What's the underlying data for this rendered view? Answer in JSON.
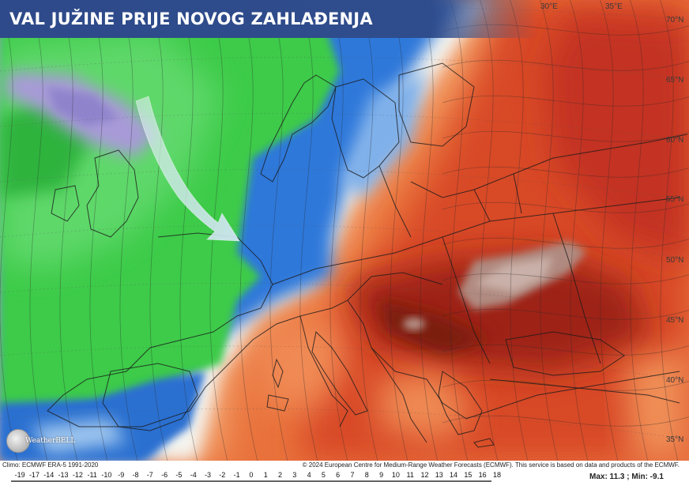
{
  "title": "VAL JUŽINE PRIJE NOVOG ZAHLAĐENJA",
  "lon_labels": [
    "30°E",
    "35°E"
  ],
  "lat_labels": [
    "70°N",
    "65°N",
    "60°N",
    "55°N",
    "50°N",
    "45°N",
    "40°N",
    "35°N"
  ],
  "logo_text": "WeatherBELL",
  "climo_text": "Climo: ECMWF ERA-5 1991-2020",
  "copyright_text": "© 2024 European Centre for Medium-Range Weather Forecasts (ECMWF). This service is based on data and products of the ECMWF.",
  "legend_ticks": [
    "-19",
    "-17",
    "-14",
    "-13",
    "-12",
    "-11",
    "-10",
    "-9",
    "-8",
    "-7",
    "-6",
    "-5",
    "-4",
    "-3",
    "-2",
    "-1",
    "0",
    "1",
    "2",
    "3",
    "4",
    "5",
    "6",
    "7",
    "8",
    "9",
    "10",
    "11",
    "12",
    "13",
    "14",
    "15",
    "16",
    "18"
  ],
  "maxmin_text": "Max: 11.3 ; Min: -9.1",
  "colors": {
    "banner": "#2f4c8c",
    "cold_green": "#3fc94a",
    "cold_blue": "#2a6fd6",
    "warm_orange": "#f08a4b",
    "warm_red": "#c8321c",
    "hot_dark": "#7a1a10",
    "arrow": "#d8e8f4"
  },
  "arrow_icon": "cold-air-flow-arrow"
}
